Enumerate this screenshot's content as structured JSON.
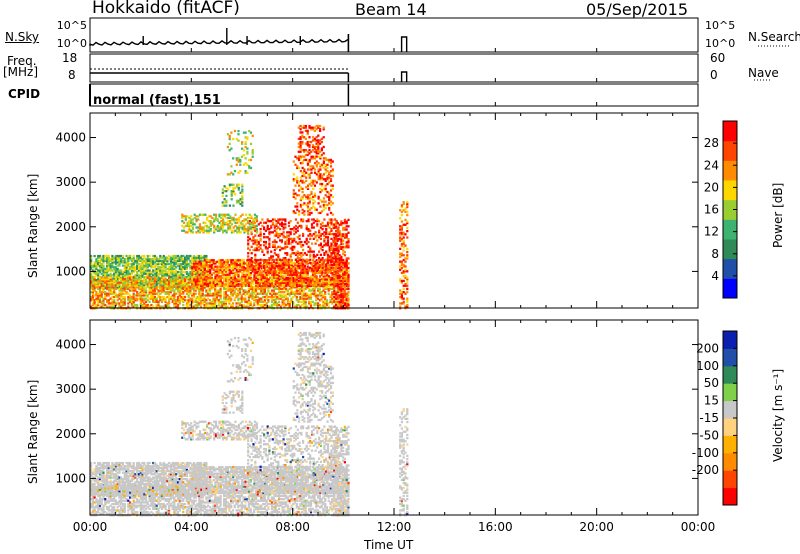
{
  "header": {
    "title": "Hokkaido (fitACF)",
    "beam": "Beam 14",
    "date": "05/Sep/2015"
  },
  "side_labels": {
    "nsky": "N.Sky",
    "nsearch": "N.Search",
    "freq": "Freq.",
    "mhz": "[MHz]",
    "nave": "Nave",
    "cpid": "CPID",
    "cpid_text": "normal (fast) 151",
    "freq_tick_top": "18",
    "freq_tick_bot": "8",
    "nave_tick_top": "60",
    "nave_tick_bot": "0"
  },
  "colors": {
    "power": [
      "#0000ff",
      "#1f4fa8",
      "#2e8b57",
      "#3cb371",
      "#9acd32",
      "#ffd700",
      "#ff8c00",
      "#ff4500",
      "#ff0000"
    ],
    "velocity": [
      "#ff0000",
      "#ff4500",
      "#ff8c00",
      "#ffb000",
      "#ffd27f",
      "#c8c8c8",
      "#7fd14a",
      "#2e8b57",
      "#1f4fa8",
      "#0a1fb0"
    ]
  },
  "chart_data": [
    {
      "type": "heatmap",
      "title": "Beam 14",
      "xlabel": "Time UT",
      "ylabel": "Slant Range [km]",
      "x_ticks": [
        "00:00",
        "04:00",
        "08:00",
        "12:00",
        "16:00",
        "20:00",
        "00:00"
      ],
      "y_ticks": [
        1000,
        2000,
        3000,
        4000
      ],
      "ylim": [
        180,
        4550
      ],
      "colorbar": {
        "label": "Power [dB]",
        "ticks": [
          4,
          8,
          12,
          16,
          20,
          24,
          28
        ],
        "range": [
          0,
          32
        ]
      }
    },
    {
      "type": "heatmap",
      "xlabel": "Time UT",
      "ylabel": "Slant Range [km]",
      "x_ticks": [
        "00:00",
        "04:00",
        "08:00",
        "12:00",
        "16:00",
        "20:00",
        "00:00"
      ],
      "y_ticks": [
        1000,
        2000,
        3000,
        4000
      ],
      "ylim": [
        180,
        4550
      ],
      "colorbar": {
        "label": "Velocity [m s⁻¹]",
        "ticks": [
          "200",
          "100",
          "50",
          "15",
          "-15",
          "-50",
          "-100",
          "-200"
        ]
      }
    }
  ],
  "bottom": {
    "x_ticks": [
      "00:00",
      "04:00",
      "08:00",
      "12:00",
      "16:00",
      "20:00",
      "00:00"
    ],
    "xlabel": "Time UT"
  }
}
